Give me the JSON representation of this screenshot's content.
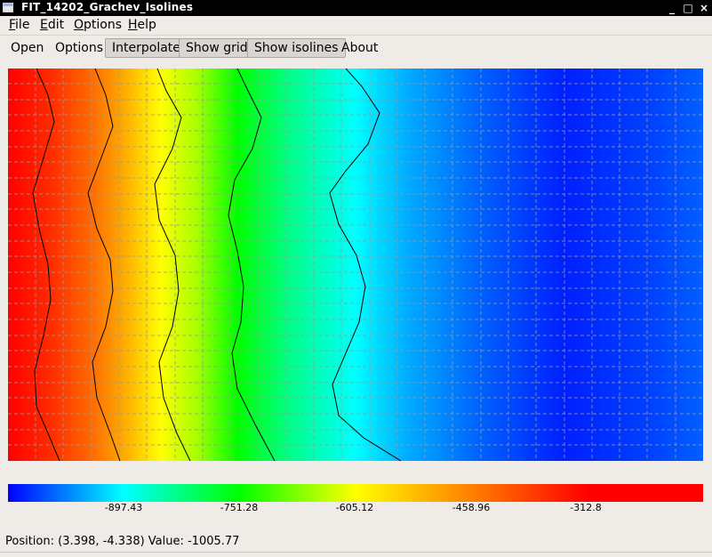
{
  "window": {
    "title": "FIT_14202_Grachev_Isolines",
    "controls": {
      "minimize": "_",
      "maximize": "□",
      "close": "×"
    }
  },
  "menubar": {
    "items": [
      {
        "mnemonic": "F",
        "rest": "ile"
      },
      {
        "mnemonic": "E",
        "rest": "dit"
      },
      {
        "mnemonic": "O",
        "rest": "ptions"
      },
      {
        "mnemonic": "H",
        "rest": "elp"
      }
    ]
  },
  "toolbar": {
    "open": "Open",
    "options": "Options",
    "interpolate": "Interpolate",
    "show_grid": "Show grid",
    "show_isolines": "Show isolines",
    "about": "About"
  },
  "legend": {
    "labels": [
      "-897.43",
      "-751.28",
      "-605.12",
      "-458.96",
      "-312.8"
    ],
    "colors": [
      "#0000ff",
      "#00ffff",
      "#00ff00",
      "#ffff00",
      "#ff8000",
      "#ff0000"
    ]
  },
  "status": {
    "text": "Position: (3.398, -4.338) Value: -1005.77"
  }
}
